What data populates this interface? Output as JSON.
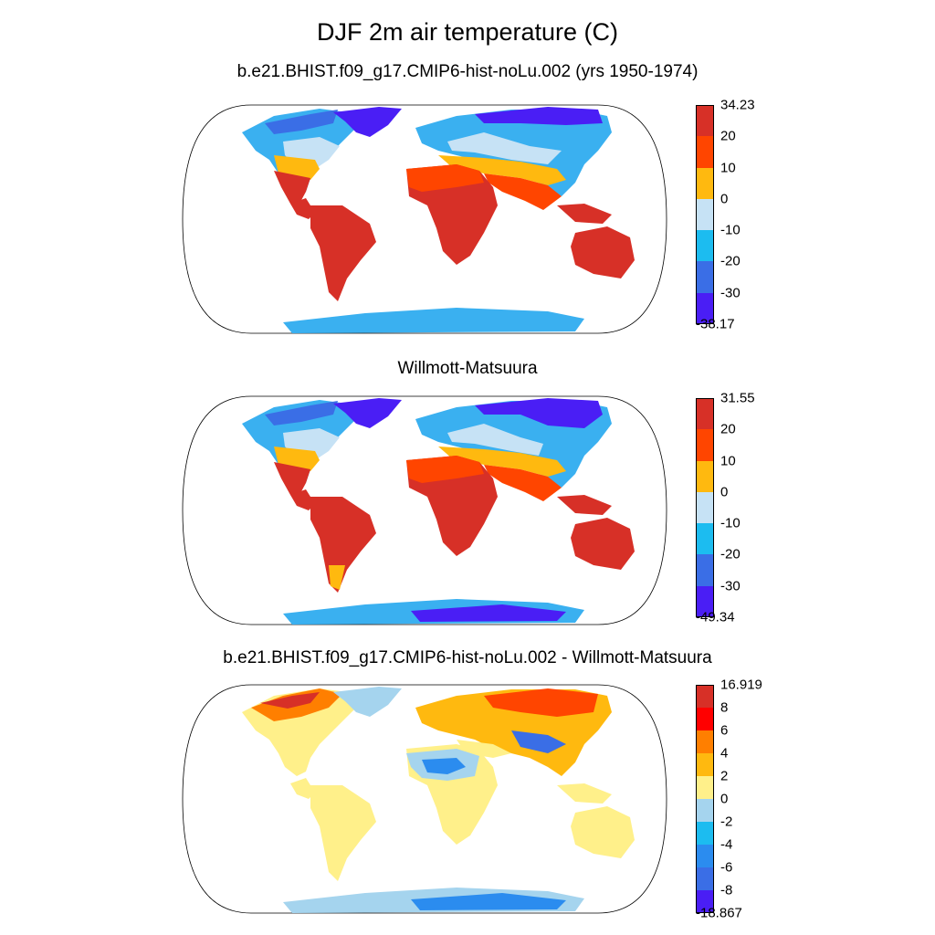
{
  "title": "DJF 2m air temperature (C)",
  "panels": [
    {
      "title": "b.e21.BHIST.f09_g17.CMIP6-hist-noLu.002 (yrs 1950-1974)",
      "colorbar": {
        "labels": [
          "34.23",
          "20",
          "10",
          "0",
          "-10",
          "-20",
          "-30",
          "-38.17"
        ],
        "colors": [
          "#d73027",
          "#ff4500",
          "#ffb90f",
          "#c6e2f5",
          "#1cbcf0",
          "#3a6ee6",
          "#4a1ef5"
        ]
      }
    },
    {
      "title": "Willmott-Matsuura",
      "colorbar": {
        "labels": [
          "31.55",
          "20",
          "10",
          "0",
          "-10",
          "-20",
          "-30",
          "-49.34"
        ],
        "colors": [
          "#d73027",
          "#ff4500",
          "#ffb90f",
          "#c6e2f5",
          "#1cbcf0",
          "#3a6ee6",
          "#4a1ef5"
        ]
      }
    },
    {
      "title": "b.e21.BHIST.f09_g17.CMIP6-hist-noLu.002 - Willmott-Matsuura",
      "colorbar": {
        "labels": [
          "16.919",
          "8",
          "6",
          "4",
          "2",
          "0",
          "-2",
          "-4",
          "-6",
          "-8",
          "-18.867"
        ],
        "colors": [
          "#d73027",
          "#ff0000",
          "#ff7f00",
          "#ffb90f",
          "#fff08a",
          "#a5d4ee",
          "#1cbcf0",
          "#2b8cef",
          "#3a6ee6",
          "#4a1ef5"
        ]
      }
    }
  ]
}
